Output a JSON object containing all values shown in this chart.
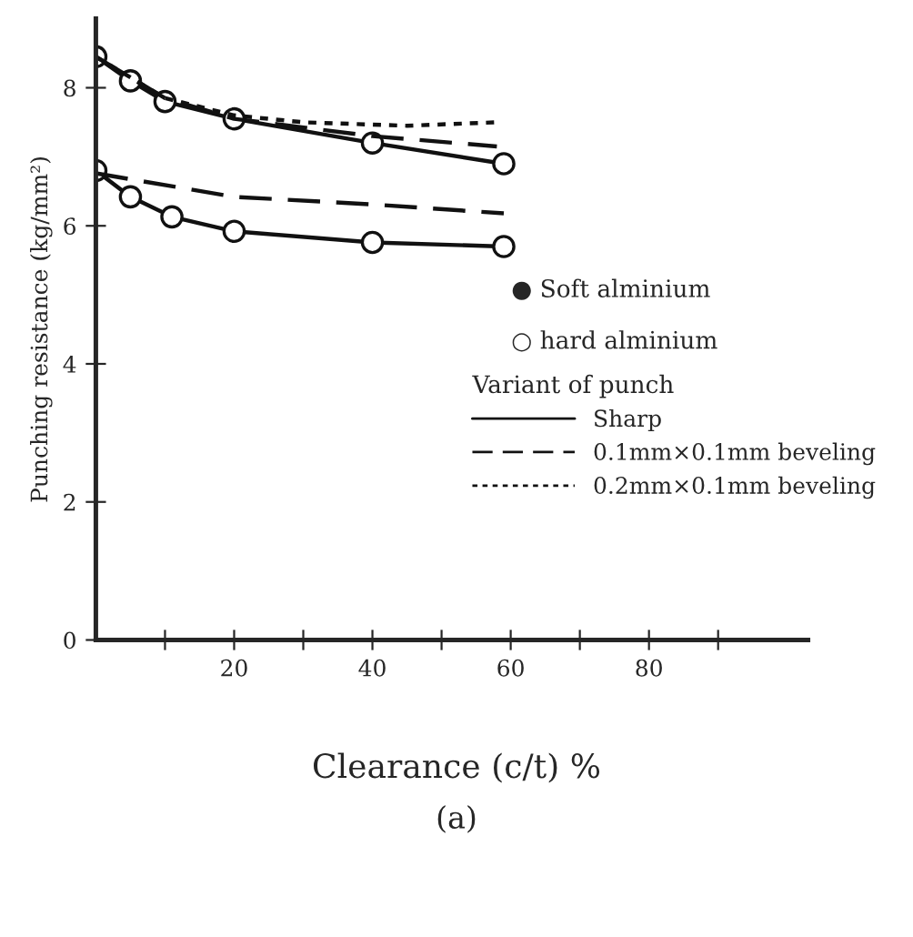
{
  "chart_data": {
    "type": "line",
    "xlabel": "Clearance (c/t) %",
    "ylabel": "Punching resistance (kg/mm²)",
    "legend_title": "Variant of punch",
    "annotations": [
      "● Soft alminium",
      "○ hard alminium",
      "(a)"
    ],
    "xlim": [
      0,
      103
    ],
    "ylim": [
      0,
      9
    ],
    "xticks": [
      {
        "value": 10,
        "label": null
      },
      20,
      {
        "value": 30,
        "label": null
      },
      40,
      {
        "value": 50,
        "label": null
      },
      60,
      {
        "value": 70,
        "label": null
      },
      80,
      {
        "value": 90,
        "label": null
      }
    ],
    "yticks": [
      0,
      2,
      4,
      6,
      8
    ],
    "grid": false,
    "legend": "right",
    "series": [
      {
        "name": "Sharp",
        "color": "#111111",
        "marker": "circle",
        "line_style": "solid",
        "x": [
          0,
          5,
          10,
          20,
          40,
          59
        ],
        "values": [
          8.45,
          8.1,
          7.8,
          7.55,
          7.2,
          6.9
        ]
      },
      {
        "name": "0.1mm×0.1mm beveling",
        "color": "#111111",
        "marker": "none",
        "line_style": "dashed",
        "x": [
          0,
          10,
          20,
          40,
          58
        ],
        "values": [
          8.45,
          7.85,
          7.55,
          7.3,
          7.15
        ]
      },
      {
        "name": "0.2mm×0.1mm beveling",
        "color": "#111111",
        "marker": "none",
        "line_style": "dotted",
        "x": [
          0,
          10,
          20,
          30,
          45,
          58
        ],
        "values": [
          8.45,
          7.85,
          7.6,
          7.5,
          7.45,
          7.5
        ]
      },
      {
        "color": "#111111",
        "marker": "circle",
        "line_style": "solid",
        "x": [
          0,
          5,
          11,
          20,
          40,
          59
        ],
        "values": [
          6.8,
          6.42,
          6.13,
          5.92,
          5.76,
          5.7
        ]
      },
      {
        "color": "#111111",
        "marker": "none",
        "line_style": "dashed",
        "x": [
          0,
          20,
          40,
          59
        ],
        "values": [
          6.76,
          6.42,
          6.31,
          6.18
        ]
      }
    ]
  }
}
